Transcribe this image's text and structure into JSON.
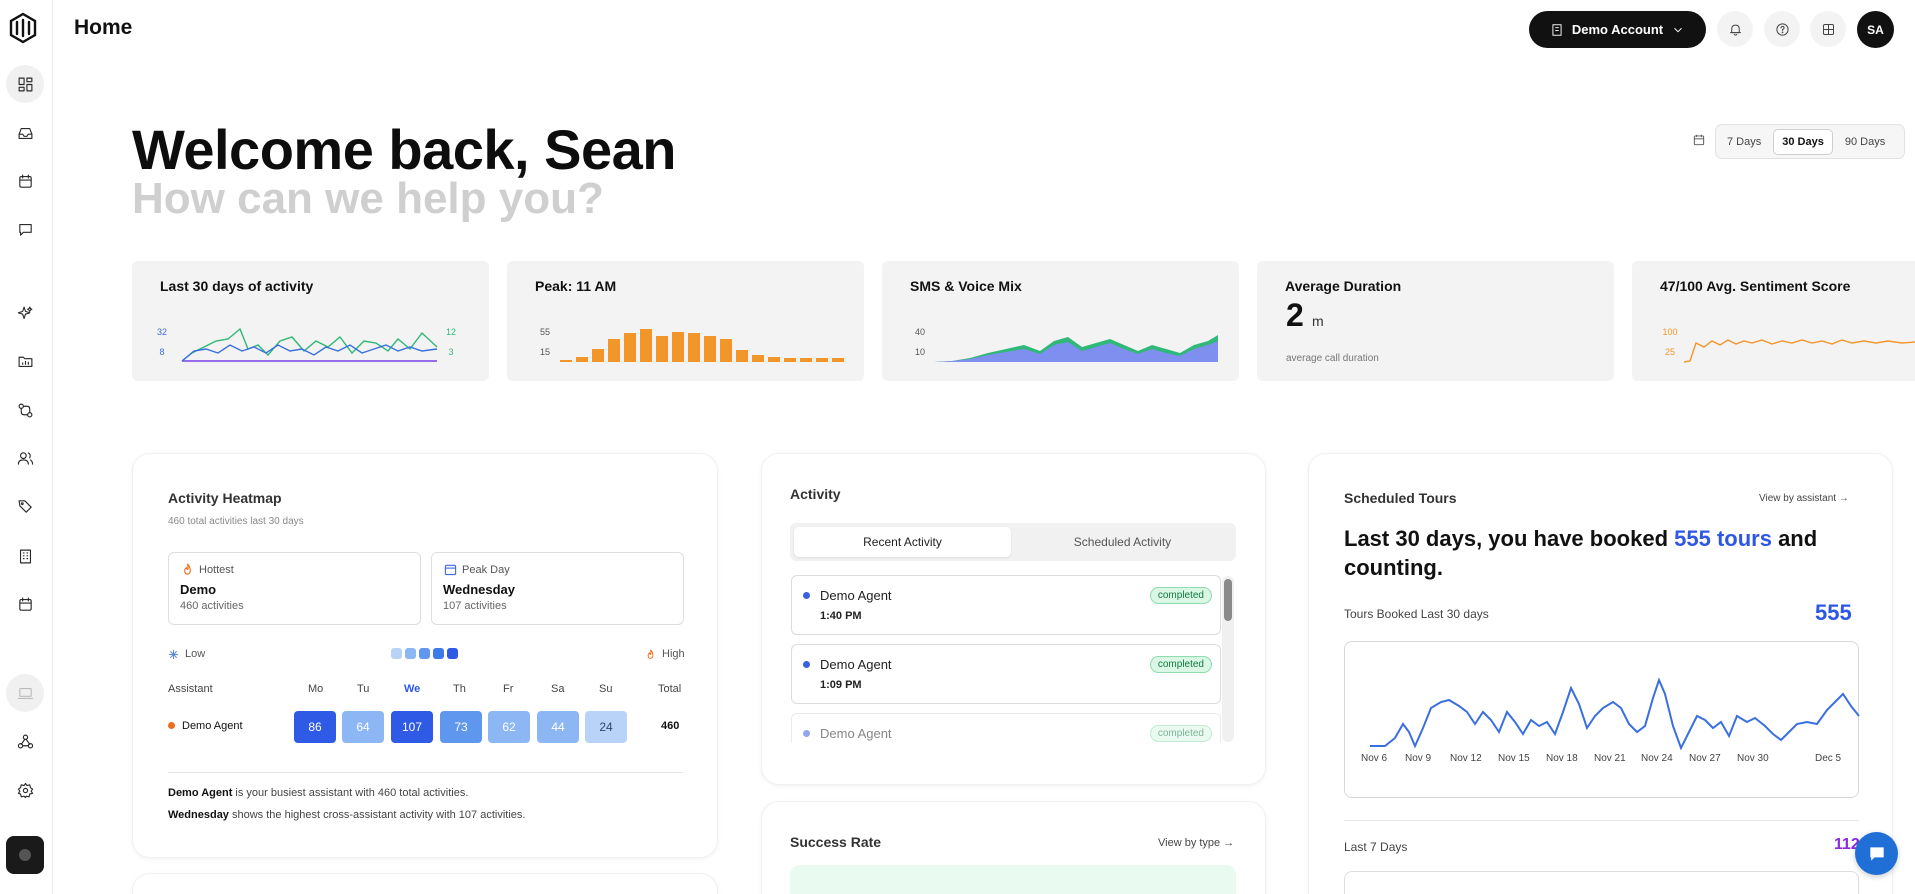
{
  "header": {
    "title": "Home",
    "account_label": "Demo Account",
    "avatar_initials": "SA"
  },
  "hero": {
    "title": "Welcome back, Sean",
    "subtitle": "How can we help you?"
  },
  "range": {
    "options": [
      "7 Days",
      "30 Days",
      "90 Days"
    ],
    "selected": "30 Days"
  },
  "metrics": {
    "activity": {
      "title": "Last 30 days of activity",
      "left_ticks": [
        "32",
        "8"
      ],
      "right_ticks": [
        "12",
        "3"
      ]
    },
    "peak": {
      "title": "Peak: 11 AM",
      "ticks": [
        "55",
        "15"
      ]
    },
    "mix": {
      "title": "SMS & Voice Mix",
      "ticks": [
        "40",
        "10"
      ]
    },
    "duration": {
      "title": "Average Duration",
      "value": "2",
      "unit": "m",
      "note": "average call duration"
    },
    "sentiment": {
      "title": "47/100 Avg. Sentiment Score",
      "ticks": [
        "100",
        "25"
      ]
    }
  },
  "heatmap": {
    "title": "Activity Heatmap",
    "subtitle": "460 total activities last 30 days",
    "hottest": {
      "label": "Hottest",
      "value": "Demo",
      "sub": "460 activities"
    },
    "peak_day": {
      "label": "Peak Day",
      "value": "Wednesday",
      "sub": "107 activities"
    },
    "legend_low": "Low",
    "legend_high": "High",
    "col_assistant": "Assistant",
    "days": [
      "Mo",
      "Tu",
      "We",
      "Th",
      "Fr",
      "Sa",
      "Su"
    ],
    "col_total": "Total",
    "row": {
      "name": "Demo Agent",
      "values": [
        "86",
        "64",
        "107",
        "73",
        "62",
        "44",
        "24"
      ],
      "total": "460"
    },
    "footer1_bold": "Demo Agent",
    "footer1_rest": " is your busiest assistant with 460 total activities.",
    "footer2_bold": "Wednesday",
    "footer2_rest": " shows the highest cross-assistant activity with 107 activities."
  },
  "activity": {
    "title": "Activity",
    "tab_recent": "Recent Activity",
    "tab_scheduled": "Scheduled Activity",
    "items": [
      {
        "name": "Demo Agent",
        "time": "1:40 PM",
        "status": "completed"
      },
      {
        "name": "Demo Agent",
        "time": "1:09 PM",
        "status": "completed"
      },
      {
        "name": "Demo Agent",
        "time": "",
        "status": "completed"
      }
    ]
  },
  "success": {
    "title": "Success Rate",
    "link": "View by type →"
  },
  "tours": {
    "title": "Scheduled Tours",
    "link": "View by assistant →",
    "headline_pre": "Last 30 days, you have booked ",
    "headline_hl": "555 tours",
    "headline_post": " and counting.",
    "booked_label": "Tours Booked Last 30 days",
    "booked_value": "555",
    "x_labels": [
      "Nov 6",
      "Nov 9",
      "Nov 12",
      "Nov 15",
      "Nov 18",
      "Nov 21",
      "Nov 24",
      "Nov 27",
      "Nov 30",
      "Dec 5"
    ],
    "last7_label": "Last 7 Days",
    "last7_value": "112"
  },
  "colors": {
    "accent_blue": "#2f57e6",
    "orange": "#f2962a",
    "green": "#2fb877",
    "purple": "#8a2be2"
  },
  "icons": [
    "logo-icon",
    "dashboard-icon",
    "inbox-icon",
    "calendar-icon",
    "chat-icon",
    "sparkle-icon",
    "folder-icon",
    "workflow-icon",
    "users-icon",
    "tag-icon",
    "building-icon",
    "calendar-icon",
    "monitor-icon",
    "webhook-icon",
    "gear-icon",
    "bell-icon",
    "help-icon",
    "grid-icon"
  ]
}
